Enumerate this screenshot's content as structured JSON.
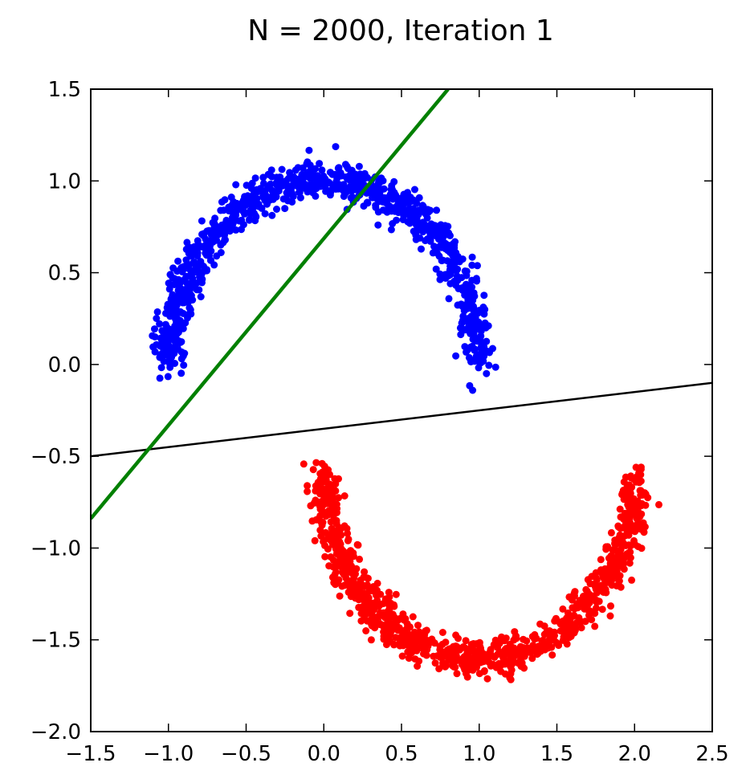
{
  "chart_data": {
    "type": "scatter",
    "title": "N = 2000, Iteration 1",
    "xlabel": "",
    "ylabel": "",
    "xlim": [
      -1.5,
      2.5
    ],
    "ylim": [
      -2.0,
      1.5
    ],
    "xticks": [
      -1.5,
      -1.0,
      -0.5,
      0.0,
      0.5,
      1.0,
      1.5,
      2.0,
      2.5
    ],
    "yticks": [
      -2.0,
      -1.5,
      -1.0,
      -0.5,
      0.0,
      0.5,
      1.0,
      1.5
    ],
    "xtick_labels": [
      "−1.5",
      "−1.0",
      "−0.5",
      "0.0",
      "0.5",
      "1.0",
      "1.5",
      "2.0",
      "2.5"
    ],
    "ytick_labels": [
      "−2.0",
      "−1.5",
      "−1.0",
      "−0.5",
      "0.0",
      "0.5",
      "1.0",
      "1.5"
    ],
    "grid": false,
    "series": [
      {
        "kind": "scatter",
        "color": "#0000ff",
        "shape": "upper half-moon",
        "center": [
          0.0,
          0.0
        ],
        "radius": 1.0,
        "angle_range_deg": [
          0,
          180
        ],
        "noise": 0.05,
        "n_points": 1000
      },
      {
        "kind": "scatter",
        "color": "#ff0000",
        "shape": "lower half-moon",
        "center": [
          1.0,
          -0.6
        ],
        "radius": 1.0,
        "angle_range_deg": [
          180,
          360
        ],
        "noise": 0.05,
        "n_points": 1000
      },
      {
        "kind": "line",
        "color": "#000000",
        "points": [
          [
            -1.5,
            -0.5
          ],
          [
            2.5,
            -0.1
          ]
        ]
      },
      {
        "kind": "line",
        "color": "#008000",
        "points": [
          [
            -1.5,
            -0.84
          ],
          [
            0.8,
            1.5
          ]
        ]
      }
    ]
  }
}
